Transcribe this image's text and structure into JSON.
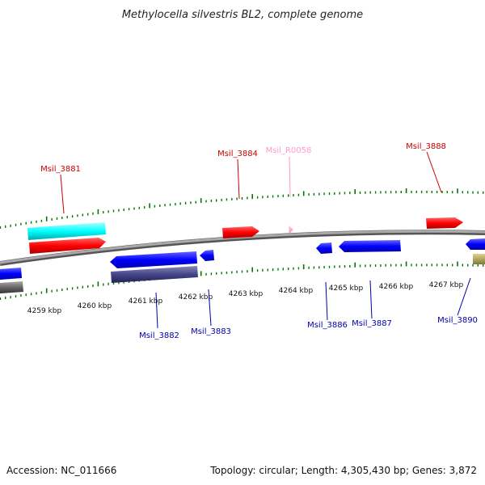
{
  "title": "Methylocella silvestris BL2, complete genome",
  "footer": {
    "accession": "Accession: NC_011666",
    "summary": "Topology: circular; Length: 4,305,430 bp; Genes: 3,872"
  },
  "scale": {
    "ticks": [
      "4259 kbp",
      "4260 kbp",
      "4261 kbp",
      "4262 kbp",
      "4263 kbp",
      "4264 kbp",
      "4265 kbp",
      "4266 kbp",
      "4267 kbp"
    ]
  },
  "colors": {
    "forward_cds": "#ff0000",
    "reverse_cds": "#0000ff",
    "rna": "#ff99cc",
    "backbone": "#888888",
    "tick": "#007700",
    "cyan_track": "#00ffff",
    "purple_track": "#444488",
    "khaki_track": "#b0a860",
    "grey_track": "#666666"
  },
  "labels": {
    "top": [
      {
        "id": "msil_3881",
        "text": "Msil_3881",
        "color": "#cc0000"
      },
      {
        "id": "msil_3884",
        "text": "Msil_3884",
        "color": "#cc0000"
      },
      {
        "id": "msil_r0058",
        "text": "Msil_R0058",
        "color": "#ff99cc"
      },
      {
        "id": "msil_3888",
        "text": "Msil_3888",
        "color": "#cc0000"
      }
    ],
    "bottom": [
      {
        "id": "msil_3882",
        "text": "Msil_3882",
        "color": "#0000aa"
      },
      {
        "id": "msil_3883",
        "text": "Msil_3883",
        "color": "#0000aa"
      },
      {
        "id": "msil_3886",
        "text": "Msil_3886",
        "color": "#0000aa"
      },
      {
        "id": "msil_3887",
        "text": "Msil_3887",
        "color": "#0000aa"
      },
      {
        "id": "msil_3890",
        "text": "Msil_3890",
        "color": "#0000aa"
      }
    ]
  }
}
